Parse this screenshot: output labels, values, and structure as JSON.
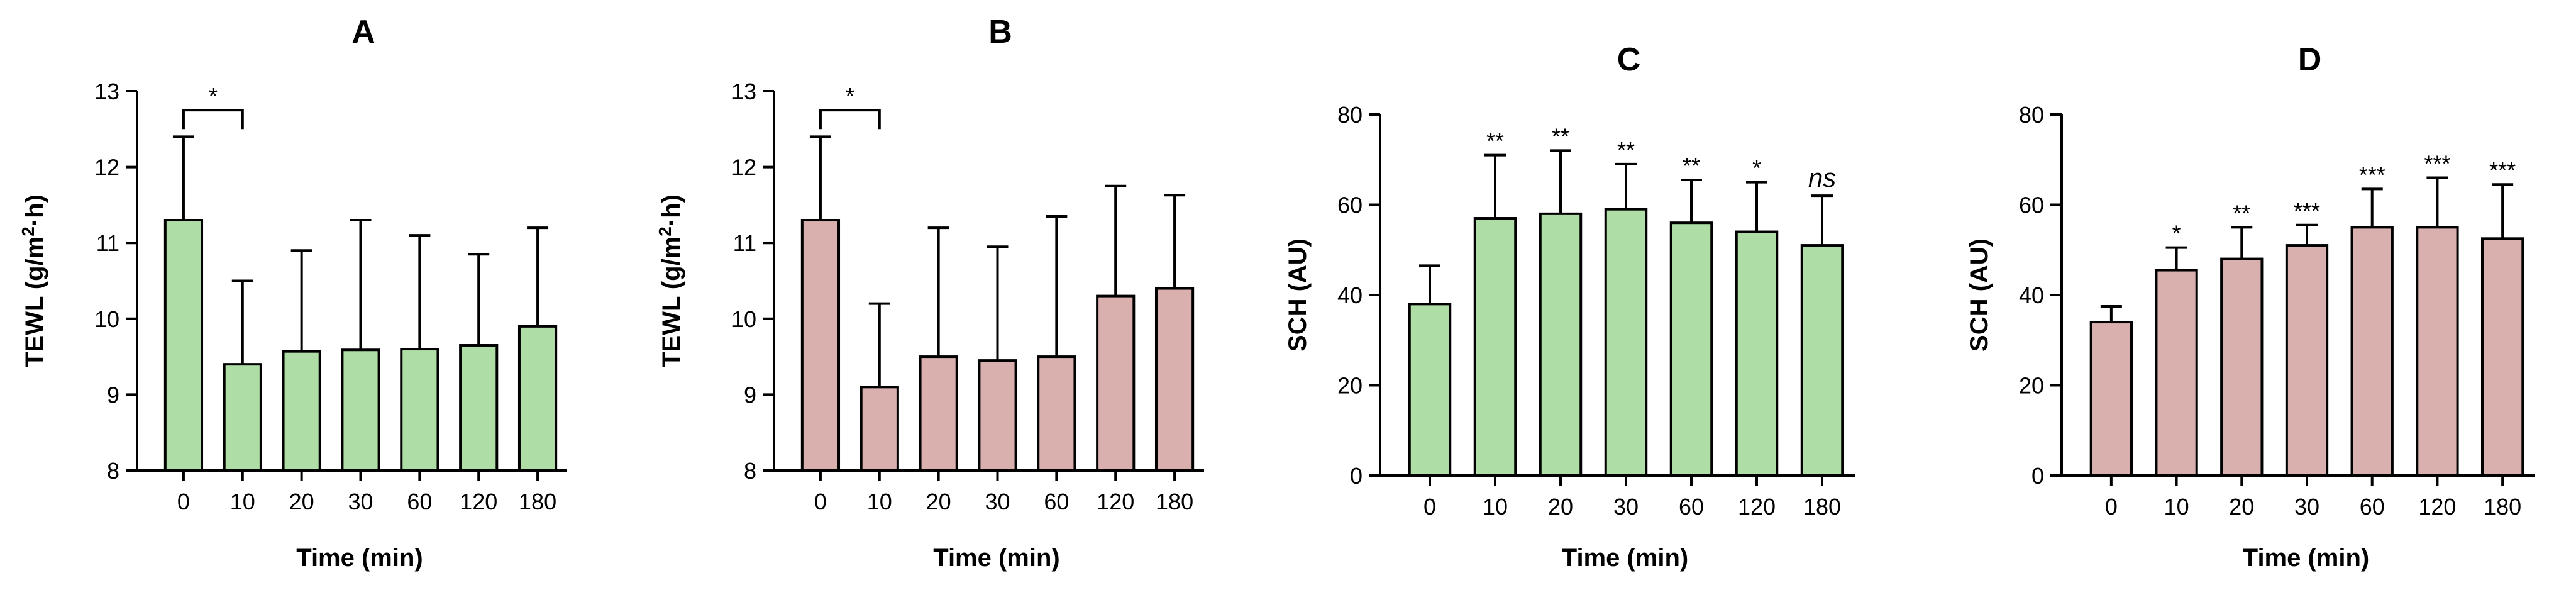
{
  "chart_data": [
    {
      "type": "bar",
      "title": "A",
      "xlabel": "Time (min)",
      "ylabel_main": "TEWL (g/m",
      "ylabel_sup": "2",
      "ylabel_end": "·h)",
      "ylim": [
        8,
        13
      ],
      "yticks": [
        "8",
        "9",
        "10",
        "11",
        "12",
        "13"
      ],
      "categories": [
        "0",
        "10",
        "20",
        "30",
        "60",
        "120",
        "180"
      ],
      "values": [
        11.3,
        9.4,
        9.57,
        9.59,
        9.6,
        9.65,
        9.9
      ],
      "error_upper": [
        12.4,
        10.5,
        10.9,
        11.3,
        11.1,
        10.85,
        11.2
      ],
      "bar_color": "#aedea6",
      "significance": [
        "",
        "",
        "",
        "",
        "",
        "",
        ""
      ],
      "bracket": {
        "from": 0,
        "to": 1,
        "label": "*"
      }
    },
    {
      "type": "bar",
      "title": "B",
      "xlabel": "Time (min)",
      "ylabel_main": "TEWL (g/m",
      "ylabel_sup": "2",
      "ylabel_end": "·h)",
      "ylim": [
        8,
        13
      ],
      "yticks": [
        "8",
        "9",
        "10",
        "11",
        "12",
        "13"
      ],
      "categories": [
        "0",
        "10",
        "20",
        "30",
        "60",
        "120",
        "180"
      ],
      "values": [
        11.3,
        9.1,
        9.5,
        9.45,
        9.5,
        10.3,
        10.4
      ],
      "error_upper": [
        12.4,
        10.2,
        11.2,
        10.95,
        11.35,
        11.75,
        11.63
      ],
      "bar_color": "#d9b0ae",
      "significance": [
        "",
        "",
        "",
        "",
        "",
        "",
        ""
      ],
      "bracket": {
        "from": 0,
        "to": 1,
        "label": "*"
      }
    },
    {
      "type": "bar",
      "title": "C",
      "xlabel": "Time (min)",
      "ylabel_main": "SCH (AU)",
      "ylabel_sup": "",
      "ylabel_end": "",
      "ylim": [
        0,
        80
      ],
      "yticks": [
        "0",
        "20",
        "40",
        "60",
        "80"
      ],
      "categories": [
        "0",
        "10",
        "20",
        "30",
        "60",
        "120",
        "180"
      ],
      "values": [
        38,
        57,
        58,
        59,
        56,
        54,
        51
      ],
      "error_upper": [
        46.5,
        71,
        72,
        69,
        65.5,
        65,
        62
      ],
      "bar_color": "#aedea6",
      "significance": [
        "",
        "**",
        "**",
        "**",
        "**",
        "*",
        "ns"
      ],
      "bracket": null
    },
    {
      "type": "bar",
      "title": "D",
      "xlabel": "Time (min)",
      "ylabel_main": "SCH (AU)",
      "ylabel_sup": "",
      "ylabel_end": "",
      "ylim": [
        0,
        80
      ],
      "yticks": [
        "0",
        "20",
        "40",
        "60",
        "80"
      ],
      "categories": [
        "0",
        "10",
        "20",
        "30",
        "60",
        "120",
        "180"
      ],
      "values": [
        34,
        45.5,
        48,
        51,
        55,
        55,
        52.5
      ],
      "error_upper": [
        37.5,
        50.5,
        55,
        55.5,
        63.5,
        66,
        64.5
      ],
      "bar_color": "#d9b0ae",
      "significance": [
        "",
        "*",
        "**",
        "***",
        "***",
        "***",
        "***"
      ],
      "bracket": null
    }
  ]
}
